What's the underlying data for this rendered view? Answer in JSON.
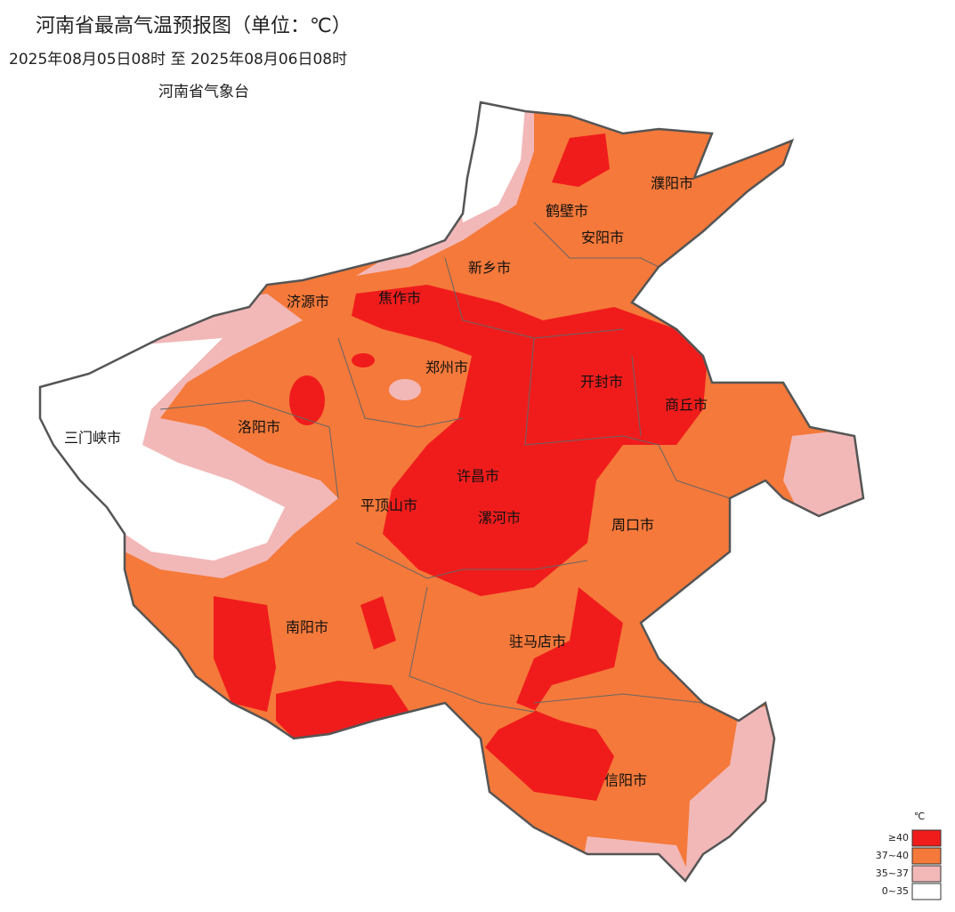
{
  "header": {
    "title": "河南省最高气温预报图（单位：℃）",
    "period": "2025年08月05日08时  至  2025年08月06日08时",
    "issuer": "河南省气象台"
  },
  "cities": [
    "濮阳市",
    "鹤壁市",
    "安阳市",
    "新乡市",
    "济源市",
    "焦作市",
    "郑州市",
    "开封市",
    "商丘市",
    "三门峡市",
    "洛阳市",
    "许昌市",
    "平顶山市",
    "漯河市",
    "周口市",
    "南阳市",
    "驻马店市",
    "信阳市"
  ],
  "legend": {
    "unit": "℃",
    "items": [
      {
        "label": "≥40",
        "color": "#f01c1c"
      },
      {
        "label": "37~40",
        "color": "#f5793a"
      },
      {
        "label": "35~37",
        "color": "#f2b8b8"
      },
      {
        "label": "0~35",
        "color": "#ffffff"
      }
    ]
  }
}
